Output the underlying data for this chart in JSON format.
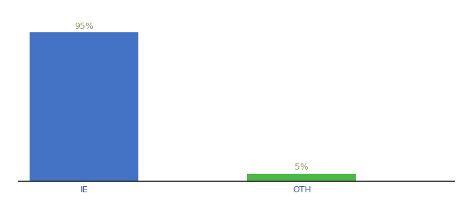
{
  "categories": [
    "IE",
    "OTH"
  ],
  "values": [
    95,
    5
  ],
  "bar_colors": [
    "#4472c4",
    "#4db848"
  ],
  "label_texts": [
    "95%",
    "5%"
  ],
  "background_color": "#ffffff",
  "ylim": [
    0,
    105
  ],
  "bar_width": 0.5,
  "figsize": [
    6.8,
    3.0
  ],
  "dpi": 100,
  "label_fontsize": 9,
  "tick_fontsize": 9,
  "label_color": "#999966",
  "tick_color": "#4455aa",
  "xlim": [
    -0.3,
    1.7
  ]
}
